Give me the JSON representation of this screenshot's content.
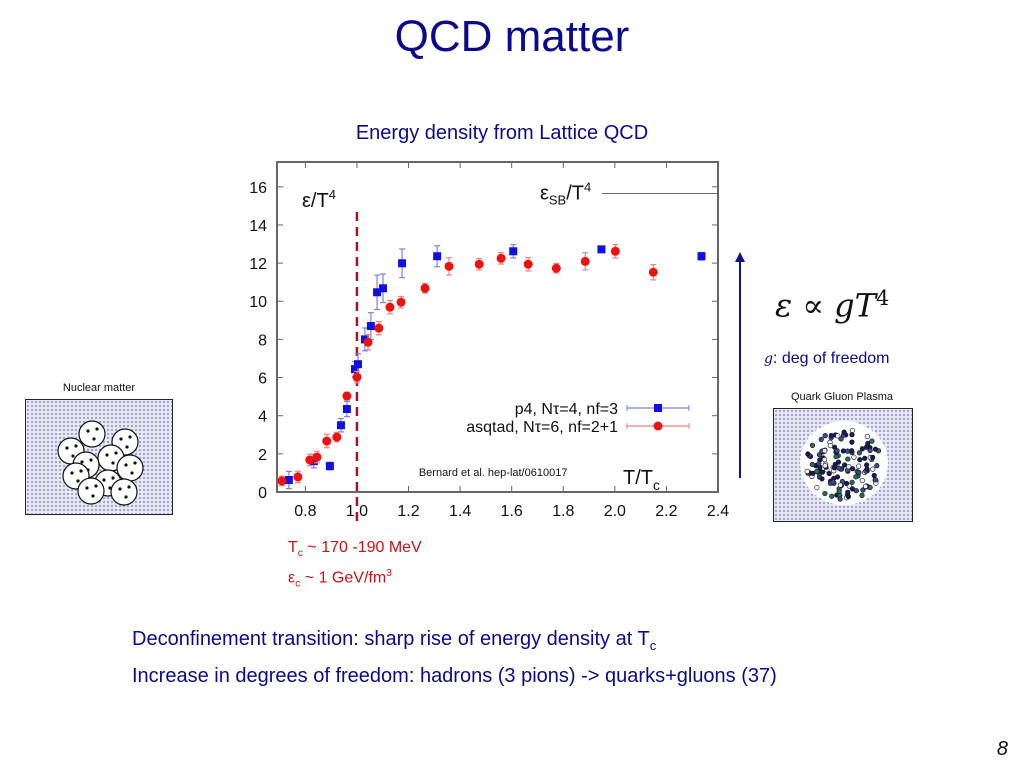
{
  "slide": {
    "title": "QCD matter",
    "subtitle": "Energy density from Lattice QCD",
    "page_number": "8"
  },
  "left_figure": {
    "label": "Nuclear matter"
  },
  "right_figure": {
    "label": "Quark Gluon Plasma"
  },
  "critical": {
    "tc_symbol": "T",
    "tc_sub": "c",
    "tc_text": " ~ 170 -190 MeV",
    "ec_symbol": "ε",
    "ec_sub": "c",
    "ec_text": " ~ 1 GeV/fm",
    "ec_sup": "3"
  },
  "formula": {
    "lhs": "ε ∝ gT",
    "exp": "4",
    "g": "g",
    "dof_text": ": deg of freedom"
  },
  "bottom": {
    "line1": "Deconfinement transition: sharp rise of energy density at T",
    "line1_sub": "c",
    "line2": "Increase in degrees of freedom: hadrons (3 pions) -> quarks+gluons (37)"
  },
  "colors": {
    "title": "#0a0a8c",
    "p4": "#1010e0",
    "asqtad": "#ee1111",
    "tc_line": "#b01020",
    "critical_text": "#cc1111"
  },
  "chart_data": {
    "type": "scatter",
    "title": "Energy density from Lattice QCD",
    "ylabel": "ε/T⁴",
    "xlabel": "T/Tc",
    "xlim": [
      0.69,
      2.4
    ],
    "ylim": [
      0,
      17.3
    ],
    "xticks": [
      0.8,
      1.0,
      1.2,
      1.4,
      1.6,
      1.8,
      2.0,
      2.2,
      2.4
    ],
    "xtick_labels": [
      "0.8",
      "1.0",
      "1.2",
      "1.4",
      "1.6",
      "1.8",
      "2.0",
      "2.2",
      "2.4"
    ],
    "yticks": [
      0,
      2,
      4,
      6,
      8,
      10,
      12,
      14,
      16
    ],
    "ytick_labels": [
      "0",
      "2",
      "4",
      "6",
      "8",
      "10",
      "12",
      "14",
      "16"
    ],
    "grid": false,
    "legend_position": "center-right",
    "annotation_source": "Bernard et al. hep-lat/0610017",
    "sb_limit": {
      "label": "εSB/T⁴",
      "value": 15.65,
      "x_from": 1.95
    },
    "tc_line": {
      "x": 1.0,
      "style": "dashed"
    },
    "series": [
      {
        "name": "p4, Nτ=4, nf=3",
        "marker": "square",
        "points": [
          [
            0.736,
            0.63,
            0.45
          ],
          [
            0.833,
            1.62,
            0.35
          ],
          [
            0.895,
            1.36,
            0.2
          ],
          [
            0.938,
            3.5,
            0.35
          ],
          [
            0.961,
            4.35,
            0.4
          ],
          [
            0.992,
            6.44,
            0.4
          ],
          [
            1.004,
            6.7,
            0.55
          ],
          [
            1.031,
            8.0,
            0.6
          ],
          [
            1.054,
            8.7,
            0.7
          ],
          [
            1.078,
            10.47,
            0.9
          ],
          [
            1.101,
            10.68,
            0.75
          ],
          [
            1.175,
            11.99,
            0.75
          ],
          [
            1.311,
            12.36,
            0.55
          ],
          [
            1.606,
            12.62,
            0.35
          ],
          [
            1.948,
            12.72,
            0.15
          ],
          [
            2.336,
            12.36,
            0.2
          ]
        ]
      },
      {
        "name": "asqtad, Nτ=6, nf=2+1",
        "marker": "circle",
        "points": [
          [
            0.709,
            0.58,
            0.25
          ],
          [
            0.771,
            0.79,
            0.3
          ],
          [
            0.817,
            1.68,
            0.3
          ],
          [
            0.845,
            1.83,
            0.3
          ],
          [
            0.883,
            2.67,
            0.35
          ],
          [
            0.922,
            2.88,
            0.25
          ],
          [
            0.961,
            5.03,
            0.2
          ],
          [
            1.0,
            6.02,
            0.3
          ],
          [
            1.043,
            7.85,
            0.4
          ],
          [
            1.085,
            8.59,
            0.35
          ],
          [
            1.128,
            9.69,
            0.35
          ],
          [
            1.171,
            9.95,
            0.3
          ],
          [
            1.264,
            10.68,
            0.25
          ],
          [
            1.357,
            11.83,
            0.45
          ],
          [
            1.474,
            11.94,
            0.3
          ],
          [
            1.559,
            12.25,
            0.3
          ],
          [
            1.664,
            11.94,
            0.35
          ],
          [
            1.773,
            11.73,
            0.25
          ],
          [
            1.885,
            12.09,
            0.45
          ],
          [
            2.002,
            12.62,
            0.35
          ],
          [
            2.149,
            11.52,
            0.4
          ]
        ]
      }
    ]
  }
}
